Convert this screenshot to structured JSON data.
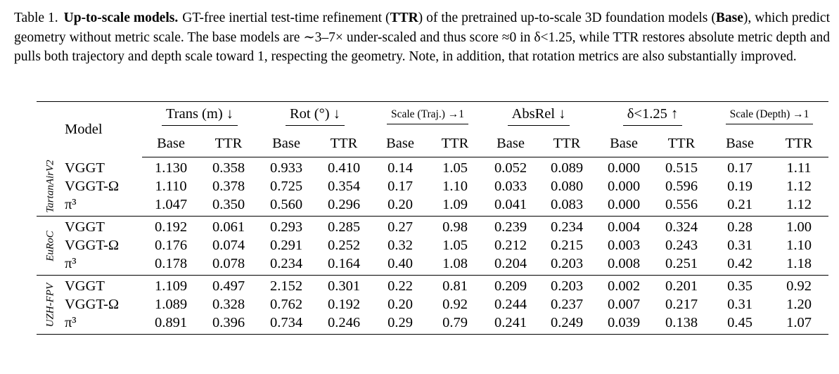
{
  "caption": {
    "label": "Table 1.",
    "title": "Up-to-scale models.",
    "parts": [
      {
        "t": "GT-free inertial test-time refinement (",
        "b": false
      },
      {
        "t": "TTR",
        "b": true
      },
      {
        "t": ") of the pretrained up-to-scale 3D foundation models (",
        "b": false
      },
      {
        "t": "Base",
        "b": true
      },
      {
        "t": "), which predict geometry without metric scale. The base models are ∼3–7× under-scaled and thus score ≈0 in δ<1.25, while TTR restores absolute metric depth and pulls both trajectory and depth scale toward 1, respecting the geometry. Note, in addition, that rotation metrics are also substantially improved.",
        "b": false
      }
    ]
  },
  "table": {
    "model_header": "Model",
    "groups": [
      {
        "label": "Trans (m) ↓",
        "small": false
      },
      {
        "label": "Rot (°) ↓",
        "small": false
      },
      {
        "label": "Scale (Traj.) →1",
        "small": true
      },
      {
        "label": "AbsRel ↓",
        "small": false
      },
      {
        "label": "δ<1.25 ↑",
        "small": false
      },
      {
        "label": "Scale (Depth) →1",
        "small": true
      }
    ],
    "sub": [
      "Base",
      "TTR"
    ],
    "datasets": [
      {
        "name": "TartanAirV2",
        "rows": [
          {
            "model": "VGGT",
            "v": [
              [
                "1.130",
                0
              ],
              [
                "0.358",
                1
              ],
              [
                "0.933",
                0
              ],
              [
                "0.410",
                1
              ],
              [
                "0.14",
                0
              ],
              [
                "1.05",
                1
              ],
              [
                "0.052",
                1
              ],
              [
                "0.089",
                0
              ],
              [
                "0.000",
                0
              ],
              [
                "0.515",
                1
              ],
              [
                "0.17",
                0
              ],
              [
                "1.11",
                1
              ]
            ]
          },
          {
            "model": "VGGT-Ω",
            "v": [
              [
                "1.110",
                0
              ],
              [
                "0.378",
                1
              ],
              [
                "0.725",
                0
              ],
              [
                "0.354",
                1
              ],
              [
                "0.17",
                0
              ],
              [
                "1.10",
                1
              ],
              [
                "0.033",
                1
              ],
              [
                "0.080",
                0
              ],
              [
                "0.000",
                0
              ],
              [
                "0.596",
                1
              ],
              [
                "0.19",
                0
              ],
              [
                "1.12",
                1
              ]
            ]
          },
          {
            "model": "π³",
            "v": [
              [
                "1.047",
                0
              ],
              [
                "0.350",
                1
              ],
              [
                "0.560",
                0
              ],
              [
                "0.296",
                1
              ],
              [
                "0.20",
                0
              ],
              [
                "1.09",
                1
              ],
              [
                "0.041",
                1
              ],
              [
                "0.083",
                0
              ],
              [
                "0.000",
                0
              ],
              [
                "0.556",
                1
              ],
              [
                "0.21",
                0
              ],
              [
                "1.12",
                1
              ]
            ]
          }
        ]
      },
      {
        "name": "EuRoC",
        "rows": [
          {
            "model": "VGGT",
            "v": [
              [
                "0.192",
                0
              ],
              [
                "0.061",
                1
              ],
              [
                "0.293",
                0
              ],
              [
                "0.285",
                1
              ],
              [
                "0.27",
                0
              ],
              [
                "0.98",
                1
              ],
              [
                "0.239",
                0
              ],
              [
                "0.234",
                1
              ],
              [
                "0.004",
                0
              ],
              [
                "0.324",
                1
              ],
              [
                "0.28",
                0
              ],
              [
                "1.00",
                1
              ]
            ]
          },
          {
            "model": "VGGT-Ω",
            "v": [
              [
                "0.176",
                0
              ],
              [
                "0.074",
                1
              ],
              [
                "0.291",
                0
              ],
              [
                "0.252",
                1
              ],
              [
                "0.32",
                0
              ],
              [
                "1.05",
                1
              ],
              [
                "0.212",
                0
              ],
              [
                "0.215",
                1
              ],
              [
                "0.003",
                0
              ],
              [
                "0.243",
                1
              ],
              [
                "0.31",
                0
              ],
              [
                "1.10",
                1
              ]
            ]
          },
          {
            "model": "π³",
            "v": [
              [
                "0.178",
                0
              ],
              [
                "0.078",
                1
              ],
              [
                "0.234",
                0
              ],
              [
                "0.164",
                1
              ],
              [
                "0.40",
                0
              ],
              [
                "1.08",
                1
              ],
              [
                "0.204",
                0
              ],
              [
                "0.203",
                1
              ],
              [
                "0.008",
                0
              ],
              [
                "0.251",
                1
              ],
              [
                "0.42",
                0
              ],
              [
                "1.18",
                1
              ]
            ]
          }
        ]
      },
      {
        "name": "UZH-FPV",
        "rows": [
          {
            "model": "VGGT",
            "v": [
              [
                "1.109",
                0
              ],
              [
                "0.497",
                1
              ],
              [
                "2.152",
                0
              ],
              [
                "0.301",
                1
              ],
              [
                "0.22",
                0
              ],
              [
                "0.81",
                1
              ],
              [
                "0.209",
                0
              ],
              [
                "0.203",
                1
              ],
              [
                "0.002",
                0
              ],
              [
                "0.201",
                1
              ],
              [
                "0.35",
                0
              ],
              [
                "0.92",
                1
              ]
            ]
          },
          {
            "model": "VGGT-Ω",
            "v": [
              [
                "1.089",
                0
              ],
              [
                "0.328",
                1
              ],
              [
                "0.762",
                0
              ],
              [
                "0.192",
                1
              ],
              [
                "0.20",
                0
              ],
              [
                "0.92",
                1
              ],
              [
                "0.244",
                0
              ],
              [
                "0.237",
                1
              ],
              [
                "0.007",
                0
              ],
              [
                "0.217",
                1
              ],
              [
                "0.31",
                0
              ],
              [
                "1.20",
                1
              ]
            ]
          },
          {
            "model": "π³",
            "v": [
              [
                "0.891",
                0
              ],
              [
                "0.396",
                1
              ],
              [
                "0.734",
                0
              ],
              [
                "0.246",
                1
              ],
              [
                "0.29",
                0
              ],
              [
                "0.79",
                1
              ],
              [
                "0.241",
                1
              ],
              [
                "0.249",
                0
              ],
              [
                "0.039",
                0
              ],
              [
                "0.138",
                1
              ],
              [
                "0.45",
                0
              ],
              [
                "1.07",
                1
              ]
            ]
          }
        ]
      }
    ]
  }
}
